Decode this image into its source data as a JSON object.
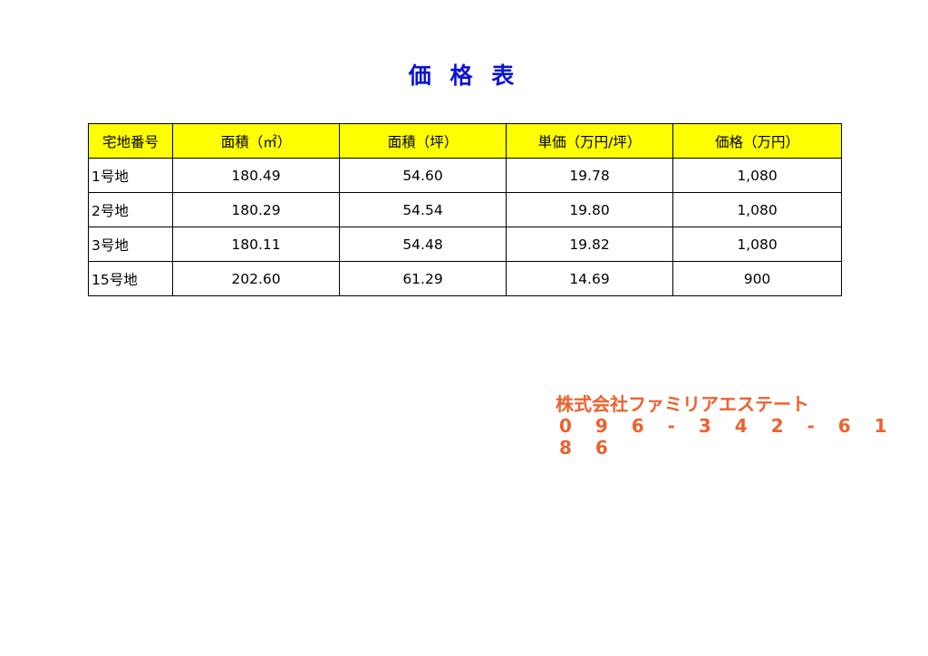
{
  "title": "価 格 表",
  "table": {
    "headers": [
      "宅地番号",
      "面積（㎡）",
      "面積（坪）",
      "単価（万円/坪）",
      "価格（万円）"
    ],
    "rows": [
      [
        "1号地",
        "180.49",
        "54.60",
        "19.78",
        "1,080"
      ],
      [
        "2号地",
        "180.29",
        "54.54",
        "19.80",
        "1,080"
      ],
      [
        "3号地",
        "180.11",
        "54.48",
        "19.82",
        "1,080"
      ],
      [
        "15号地",
        "202.60",
        "61.29",
        "14.69",
        "900"
      ]
    ]
  },
  "company": {
    "name": "株式会社ファミリアエステート",
    "phone": "0 9 6 - 3 4 2 - 6 1 8 6"
  },
  "colors": {
    "title": "#0a14d8",
    "header_bg": "#ffff00",
    "company": "#f0602c"
  }
}
